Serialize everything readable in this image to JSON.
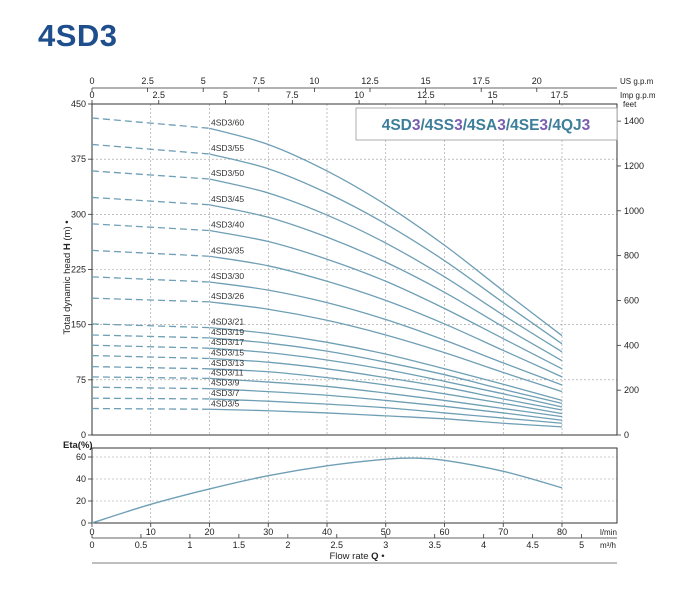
{
  "header": {
    "title": "4SD3"
  },
  "chart_data": [
    {
      "type": "line",
      "title": "4SD3/4SS3/4SA3/4SE3/4QJ3",
      "series_title_parts": [
        {
          "text": "4SD",
          "color": "#3d7f9a"
        },
        {
          "text": "3",
          "color": "#7a5fb0"
        },
        {
          "text": "/4SS",
          "color": "#3d7f9a"
        },
        {
          "text": "3",
          "color": "#7a5fb0"
        },
        {
          "text": "/4SA",
          "color": "#3d7f9a"
        },
        {
          "text": "3",
          "color": "#7a5fb0"
        },
        {
          "text": "/4SE",
          "color": "#3d7f9a"
        },
        {
          "text": "3",
          "color": "#7a5fb0"
        },
        {
          "text": "/4QJ",
          "color": "#3d7f9a"
        },
        {
          "text": "3",
          "color": "#7a5fb0"
        }
      ],
      "ylabel_parts": [
        "Total dynamic head ",
        "H",
        " (m) •"
      ],
      "xlim": [
        0,
        80
      ],
      "ylim": [
        0,
        450
      ],
      "y_ticks": [
        "0",
        "75",
        "150",
        "225",
        "300",
        "375",
        "450"
      ],
      "right_axis": {
        "unit": "feet",
        "ticks": [
          "0",
          "200",
          "400",
          "600",
          "800",
          "1000",
          "1200",
          "1400"
        ]
      },
      "top_axes": [
        {
          "unit": "US g.p.m",
          "ticks": [
            "0",
            "2.5",
            "5",
            "7.5",
            "10",
            "12.5",
            "15",
            "17.5",
            "20"
          ]
        },
        {
          "unit": "Imp g.p.m",
          "ticks": [
            "0",
            "2.5",
            "5",
            "7.5",
            "10",
            "12.5",
            "15",
            "17.5"
          ]
        }
      ],
      "curve_style": {
        "color": "#6f9fb5",
        "dashed_until_lmin": 20
      },
      "series": [
        {
          "name": "4SD3/60",
          "x": [
            0,
            20,
            30,
            40,
            50,
            60,
            70,
            80
          ],
          "y": [
            431,
            417,
            395,
            359,
            313,
            258,
            196,
            135
          ]
        },
        {
          "name": "4SD3/55",
          "x": [
            0,
            20,
            30,
            40,
            50,
            60,
            70,
            80
          ],
          "y": [
            395,
            382,
            362,
            329,
            287,
            237,
            180,
            124
          ]
        },
        {
          "name": "4SD3/50",
          "x": [
            0,
            20,
            30,
            40,
            50,
            60,
            70,
            80
          ],
          "y": [
            359,
            348,
            329,
            299,
            261,
            215,
            163,
            113
          ]
        },
        {
          "name": "4SD3/45",
          "x": [
            0,
            20,
            30,
            40,
            50,
            60,
            70,
            80
          ],
          "y": [
            323,
            313,
            296,
            269,
            235,
            194,
            147,
            101
          ]
        },
        {
          "name": "4SD3/40",
          "x": [
            0,
            20,
            30,
            40,
            50,
            60,
            70,
            80
          ],
          "y": [
            287,
            278,
            263,
            239,
            209,
            172,
            131,
            90
          ]
        },
        {
          "name": "4SD3/35",
          "x": [
            0,
            20,
            30,
            40,
            50,
            60,
            70,
            80
          ],
          "y": [
            251,
            243,
            230,
            209,
            183,
            151,
            115,
            79
          ]
        },
        {
          "name": "4SD3/30",
          "x": [
            0,
            20,
            30,
            40,
            50,
            60,
            70,
            80
          ],
          "y": [
            215,
            208,
            197,
            180,
            157,
            129,
            98,
            68
          ]
        },
        {
          "name": "4SD3/26",
          "x": [
            0,
            20,
            30,
            40,
            50,
            60,
            70,
            80
          ],
          "y": [
            186,
            181,
            171,
            156,
            136,
            112,
            85,
            59
          ]
        },
        {
          "name": "4SD3/21",
          "x": [
            0,
            20,
            30,
            40,
            50,
            60,
            70,
            80
          ],
          "y": [
            151,
            146,
            138,
            126,
            110,
            90,
            69,
            47
          ]
        },
        {
          "name": "4SD3/19",
          "x": [
            0,
            20,
            30,
            40,
            50,
            60,
            70,
            80
          ],
          "y": [
            136,
            132,
            125,
            114,
            99,
            82,
            62,
            43
          ]
        },
        {
          "name": "4SD3/17",
          "x": [
            0,
            20,
            30,
            40,
            50,
            60,
            70,
            80
          ],
          "y": [
            122,
            118,
            112,
            102,
            89,
            73,
            56,
            38
          ]
        },
        {
          "name": "4SD3/15",
          "x": [
            0,
            20,
            30,
            40,
            50,
            60,
            70,
            80
          ],
          "y": [
            108,
            104,
            99,
            90,
            78,
            65,
            49,
            34
          ]
        },
        {
          "name": "4SD3/13",
          "x": [
            0,
            20,
            30,
            40,
            50,
            60,
            70,
            80
          ],
          "y": [
            93,
            90,
            86,
            78,
            68,
            56,
            43,
            29
          ]
        },
        {
          "name": "4SD3/11",
          "x": [
            0,
            20,
            30,
            40,
            50,
            60,
            70,
            80
          ],
          "y": [
            79,
            77,
            72,
            66,
            57,
            47,
            36,
            25
          ]
        },
        {
          "name": "4SD3/9",
          "x": [
            0,
            20,
            30,
            40,
            50,
            60,
            70,
            80
          ],
          "y": [
            65,
            63,
            59,
            54,
            47,
            39,
            30,
            20
          ]
        },
        {
          "name": "4SD3/7",
          "x": [
            0,
            20,
            30,
            40,
            50,
            60,
            70,
            80
          ],
          "y": [
            50,
            49,
            46,
            42,
            37,
            30,
            23,
            16
          ]
        },
        {
          "name": "4SD3/5",
          "x": [
            0,
            20,
            30,
            40,
            50,
            60,
            70,
            80
          ],
          "y": [
            36,
            35,
            33,
            30,
            26,
            22,
            16,
            11
          ]
        }
      ]
    },
    {
      "type": "line",
      "ylabel": "Eta(%)",
      "xlim": [
        0,
        80
      ],
      "ylim": [
        0,
        70
      ],
      "y_ticks": [
        "0",
        "20",
        "40",
        "60"
      ],
      "x_bottom_axes": [
        {
          "unit": "l/min",
          "ticks": [
            "0",
            "10",
            "20",
            "30",
            "40",
            "50",
            "60",
            "70",
            "80"
          ]
        },
        {
          "unit": "m³/h",
          "ticks": [
            "0",
            "0.5",
            "1",
            "1.5",
            "2",
            "2.5",
            "3",
            "3.5",
            "4",
            "4.5",
            "5"
          ]
        }
      ],
      "xlabel_parts": [
        "Flow rate ",
        "Q",
        " •"
      ],
      "series": [
        {
          "name": "",
          "x": [
            0,
            10,
            20,
            30,
            40,
            50,
            55,
            60,
            70,
            80
          ],
          "y": [
            0,
            17,
            31,
            43,
            52,
            58,
            59,
            57,
            47,
            32
          ]
        }
      ]
    }
  ]
}
